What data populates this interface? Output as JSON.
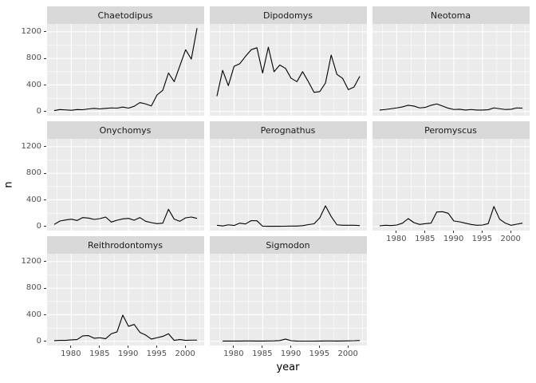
{
  "figure": {
    "y_axis_title": "n",
    "x_axis_title": "year",
    "colors": {
      "background": "#ffffff",
      "panel_bg": "#ebebeb",
      "strip_bg": "#d9d9d9",
      "grid": "#ffffff",
      "line": "#000000",
      "axis_text": "#4d4d4d",
      "strip_text": "#1a1a1a",
      "tick": "#333333"
    }
  },
  "chart_data": {
    "type": "line",
    "title": "",
    "xlabel": "year",
    "ylabel": "n",
    "legend": "none",
    "grid": true,
    "facet_layout": {
      "ncol": 3,
      "nrow": 3,
      "order": "row-major",
      "empty_last_cell": true
    },
    "x_range": [
      1975.75,
      2003.25
    ],
    "y_range": [
      -62,
      1318
    ],
    "x_ticks": [
      1980,
      1985,
      1990,
      1995,
      2000
    ],
    "y_ticks": [
      0,
      400,
      800,
      1200
    ],
    "x_minor": [
      1977.5,
      1982.5,
      1987.5,
      1992.5,
      1997.5,
      2002.5
    ],
    "y_minor": [
      200,
      600,
      1000
    ],
    "x": [
      1977,
      1978,
      1979,
      1980,
      1981,
      1982,
      1983,
      1984,
      1985,
      1986,
      1987,
      1988,
      1989,
      1990,
      1991,
      1992,
      1993,
      1994,
      1995,
      1996,
      1997,
      1998,
      1999,
      2000,
      2001,
      2002
    ],
    "facets": [
      {
        "label": "Chaetodipus",
        "values": [
          15,
          30,
          25,
          20,
          30,
          28,
          40,
          48,
          40,
          48,
          55,
          52,
          68,
          52,
          80,
          135,
          115,
          85,
          250,
          320,
          580,
          450,
          690,
          930,
          790,
          1255
        ]
      },
      {
        "label": "Dipodomys",
        "values": [
          232,
          620,
          390,
          680,
          720,
          830,
          930,
          960,
          580,
          968,
          600,
          700,
          650,
          500,
          450,
          600,
          450,
          290,
          300,
          430,
          850,
          560,
          500,
          330,
          370,
          530
        ]
      },
      {
        "label": "Neotoma",
        "values": [
          23,
          31,
          43,
          55,
          71,
          95,
          83,
          55,
          63,
          95,
          115,
          83,
          51,
          31,
          35,
          23,
          31,
          23,
          23,
          27,
          55,
          43,
          31,
          35,
          55,
          51
        ]
      },
      {
        "label": "Onychomys",
        "values": [
          30,
          82,
          98,
          110,
          90,
          134,
          126,
          106,
          118,
          142,
          66,
          94,
          114,
          122,
          94,
          134,
          78,
          58,
          42,
          50,
          258,
          110,
          78,
          130,
          142,
          122
        ]
      },
      {
        "label": "Perognathus",
        "values": [
          18,
          8,
          25,
          15,
          50,
          38,
          88,
          86,
          4,
          3,
          3,
          3,
          4,
          6,
          6,
          12,
          28,
          40,
          130,
          310,
          150,
          25,
          18,
          18,
          18,
          14
        ]
      },
      {
        "label": "Peromyscus",
        "values": [
          10,
          18,
          14,
          22,
          50,
          118,
          58,
          30,
          42,
          50,
          218,
          222,
          198,
          82,
          70,
          50,
          30,
          18,
          22,
          42,
          300,
          110,
          50,
          18,
          34,
          50
        ]
      },
      {
        "label": "Reithrodontomys",
        "values": [
          11,
          15,
          15,
          23,
          27,
          83,
          87,
          47,
          55,
          39,
          115,
          143,
          395,
          227,
          255,
          135,
          95,
          35,
          55,
          75,
          115,
          15,
          27,
          15,
          19,
          19
        ]
      },
      {
        "label": "Sigmodon",
        "values": [
          null,
          5,
          5,
          5,
          5,
          6,
          6,
          5,
          5,
          6,
          8,
          12,
          35,
          10,
          5,
          4,
          4,
          4,
          5,
          6,
          6,
          5,
          6,
          8,
          10,
          14
        ]
      }
    ]
  }
}
